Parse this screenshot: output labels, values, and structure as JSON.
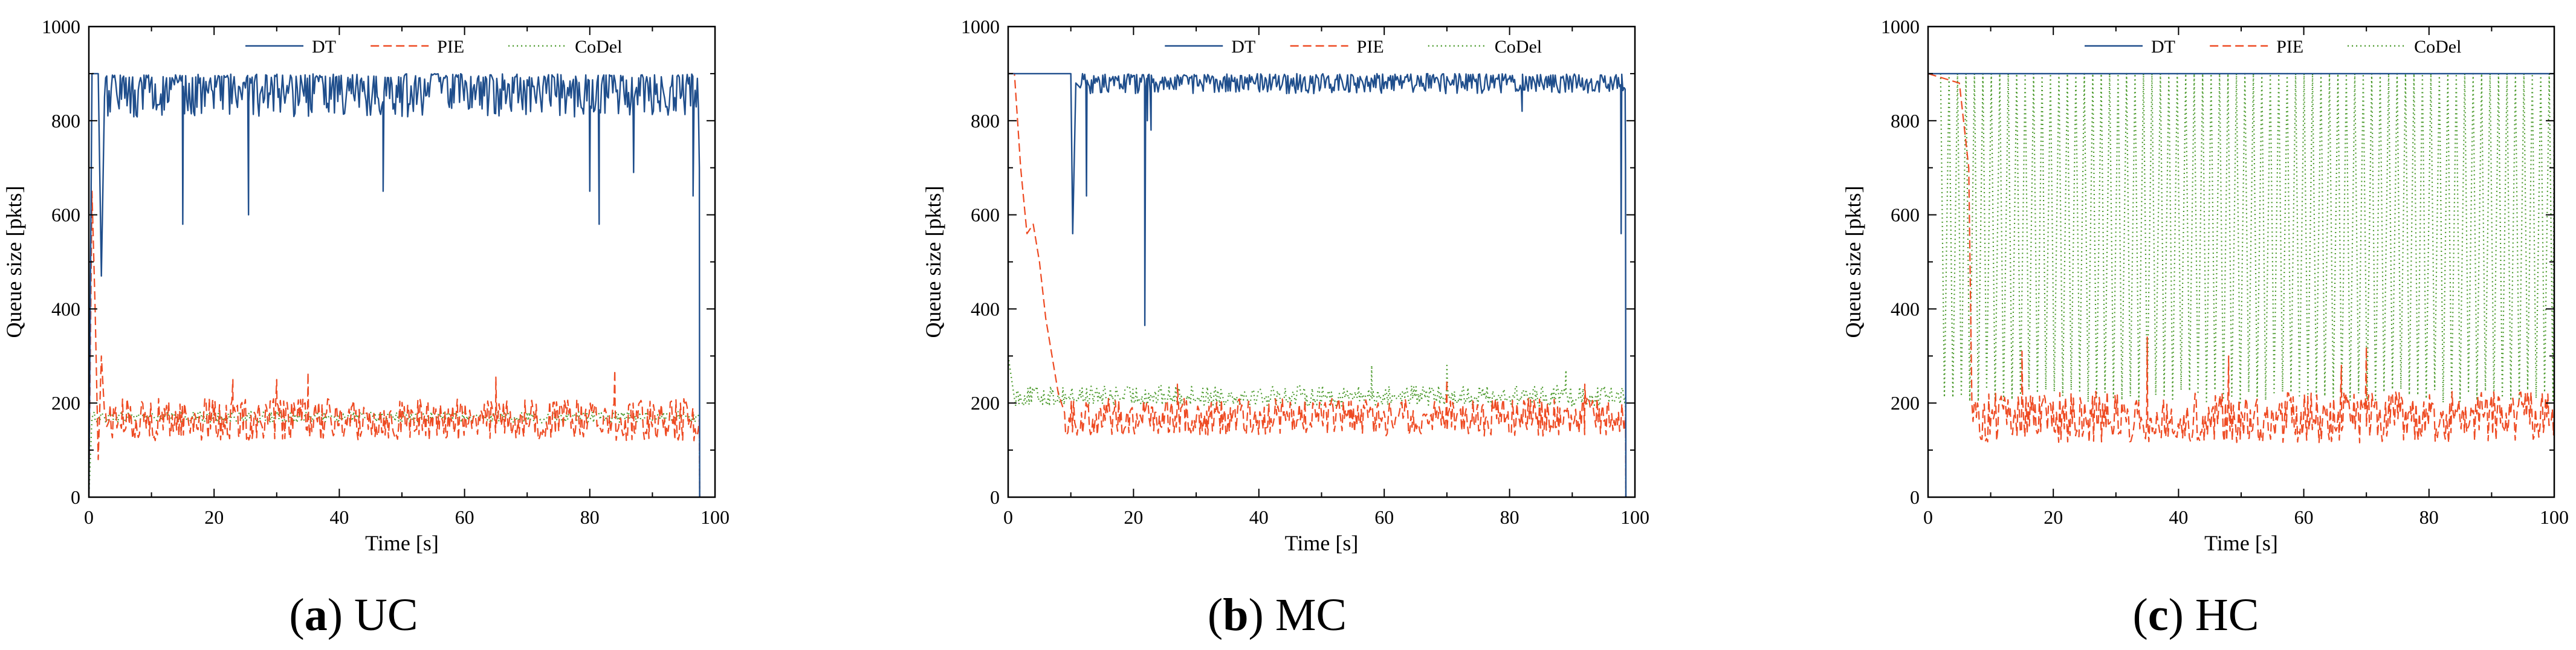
{
  "colors": {
    "DT": "#1f4e8c",
    "PIE": "#ee4a22",
    "CoDel": "#4b9a2c"
  },
  "chart_data": [
    {
      "type": "line",
      "panel_letter": "a",
      "caption": "UC",
      "xlabel": "Time [s]",
      "ylabel": "Queue size [pkts]",
      "xlim": [
        0,
        100
      ],
      "ylim": [
        0,
        1000
      ],
      "xticks": [
        0,
        20,
        40,
        60,
        80,
        100
      ],
      "yticks": [
        0,
        200,
        400,
        600,
        800,
        1000
      ],
      "legend": [
        "DT",
        "PIE",
        "CoDel"
      ],
      "series": [
        {
          "name": "DT",
          "style": "solid",
          "x_end": 97.5,
          "mean": 850,
          "spread": 60,
          "segments": [
            [
              0,
              0
            ],
            [
              0.5,
              900
            ],
            [
              1.5,
              900
            ],
            [
              2,
              470
            ],
            [
              2.5,
              850
            ]
          ],
          "dips": [
            [
              15,
              580
            ],
            [
              25.5,
              600
            ],
            [
              47,
              650
            ],
            [
              80,
              650
            ],
            [
              81.5,
              580
            ],
            [
              87,
              690
            ],
            [
              96.5,
              640
            ]
          ]
        },
        {
          "name": "PIE",
          "style": "dashed",
          "x_end": 97.5,
          "mean": 165,
          "spread": 45,
          "segments": [
            [
              0,
              0
            ],
            [
              0.5,
              650
            ],
            [
              1,
              400
            ],
            [
              1.5,
              80
            ],
            [
              2,
              300
            ],
            [
              2.5,
              180
            ]
          ],
          "peaks": [
            [
              23,
              250
            ],
            [
              30,
              250
            ],
            [
              35,
              265
            ],
            [
              65,
              255
            ],
            [
              84,
              270
            ]
          ]
        },
        {
          "name": "CoDel",
          "style": "dotted",
          "x_end": 97.5,
          "mean": 170,
          "spread": 12,
          "segments": [
            [
              0,
              0
            ],
            [
              0.5,
              170
            ]
          ]
        }
      ]
    },
    {
      "type": "line",
      "panel_letter": "b",
      "caption": "MC",
      "xlabel": "Time [s]",
      "ylabel": "Queue size [pkts]",
      "xlim": [
        0,
        100
      ],
      "ylim": [
        0,
        1000
      ],
      "xticks": [
        0,
        20,
        40,
        60,
        80,
        100
      ],
      "yticks": [
        0,
        200,
        400,
        600,
        800,
        1000
      ],
      "legend": [
        "DT",
        "PIE",
        "CoDel"
      ],
      "series": [
        {
          "name": "DT",
          "style": "solid",
          "x_end": 98.5,
          "mean": 875,
          "spread": 25,
          "segments": [
            [
              0,
              900
            ],
            [
              10,
              900
            ],
            [
              10.3,
              560
            ],
            [
              10.8,
              880
            ],
            [
              11.5,
              870
            ]
          ],
          "dips": [
            [
              21.8,
              365
            ],
            [
              22.2,
              800
            ],
            [
              12.5,
              640
            ],
            [
              22.8,
              780
            ],
            [
              82,
              820
            ],
            [
              97.8,
              560
            ]
          ]
        },
        {
          "name": "PIE",
          "style": "dashed",
          "x_end": 98.5,
          "mean": 170,
          "spread": 40,
          "segments": [
            [
              0,
              900
            ],
            [
              1,
              900
            ],
            [
              2,
              700
            ],
            [
              3,
              560
            ],
            [
              4,
              580
            ],
            [
              5,
              500
            ],
            [
              6,
              380
            ],
            [
              7,
              300
            ],
            [
              8,
              220
            ],
            [
              9,
              180
            ]
          ],
          "peaks": [
            [
              27,
              240
            ],
            [
              70,
              250
            ],
            [
              92,
              240
            ]
          ]
        },
        {
          "name": "CoDel",
          "style": "dotted",
          "x_end": 98.5,
          "mean": 215,
          "spread": 22,
          "segments": [
            [
              0,
              300
            ],
            [
              1,
              210
            ]
          ],
          "peaks": [
            [
              58,
              280
            ],
            [
              70,
              280
            ],
            [
              89,
              270
            ]
          ]
        }
      ]
    },
    {
      "type": "line",
      "panel_letter": "c",
      "caption": "HC",
      "xlabel": "Time [s]",
      "ylabel": "Queue size [pkts]",
      "xlim": [
        0,
        100
      ],
      "ylim": [
        0,
        1000
      ],
      "xticks": [
        0,
        20,
        40,
        60,
        80,
        100
      ],
      "yticks": [
        0,
        200,
        400,
        600,
        800,
        1000
      ],
      "legend": [
        "DT",
        "PIE",
        "CoDel"
      ],
      "series": [
        {
          "name": "DT",
          "style": "solid",
          "x_end": 100,
          "mean": 900,
          "spread": 0,
          "segments": [
            [
              0,
              900
            ]
          ]
        },
        {
          "name": "PIE",
          "style": "dashed",
          "x_start": 7,
          "x_end": 100,
          "mean": 170,
          "spread": 55,
          "segments": [
            [
              0,
              900
            ],
            [
              5,
              880
            ],
            [
              6.5,
              700
            ],
            [
              7,
              200
            ]
          ],
          "peaks": [
            [
              15,
              310
            ],
            [
              35,
              340
            ],
            [
              48,
              300
            ],
            [
              66,
              280
            ],
            [
              70,
              320
            ]
          ]
        },
        {
          "name": "CoDel",
          "style": "dotted",
          "x_end": 100,
          "mean": 900,
          "spread": 0,
          "sawtooth": {
            "start": 2,
            "period": 1.35,
            "high": 900,
            "low": 200
          }
        }
      ]
    }
  ]
}
